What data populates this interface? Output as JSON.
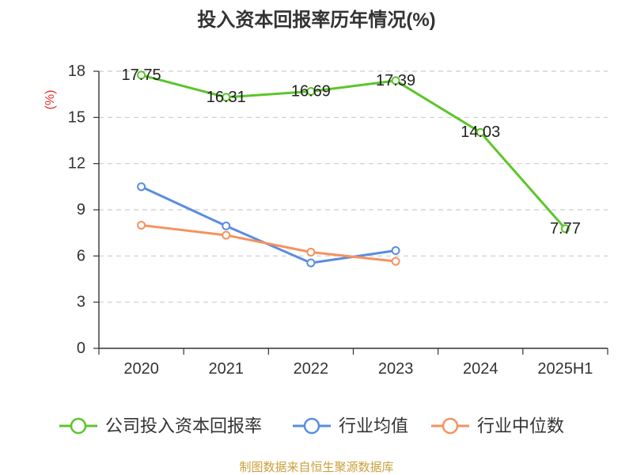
{
  "source_note": "制图数据来自恒生聚源数据库",
  "colors": {
    "title": "#333333",
    "ylabel": "#e0312f",
    "footer": "#c9a13b",
    "grid": "#cccccc",
    "axis": "#333333"
  },
  "chart_data": {
    "type": "line",
    "title": "投入资本回报率历年情况(%)",
    "xlabel": "",
    "ylabel": "(%)",
    "categories": [
      "2020",
      "2021",
      "2022",
      "2023",
      "2024",
      "2025H1"
    ],
    "ylim": [
      0,
      18
    ],
    "yticks": [
      0,
      3,
      6,
      9,
      12,
      15,
      18
    ],
    "grid": true,
    "legend": "bottom",
    "series": [
      {
        "name": "公司投入资本回报率",
        "color": "#5cc52b",
        "show_labels": true,
        "values": [
          17.75,
          16.31,
          16.69,
          17.39,
          14.03,
          7.77
        ]
      },
      {
        "name": "行业均值",
        "color": "#5a8de0",
        "show_labels": false,
        "values": [
          10.5,
          7.95,
          5.55,
          6.35,
          null,
          null
        ]
      },
      {
        "name": "行业中位数",
        "color": "#f5925f",
        "show_labels": false,
        "values": [
          8.0,
          7.35,
          6.25,
          5.65,
          null,
          null
        ]
      }
    ]
  }
}
